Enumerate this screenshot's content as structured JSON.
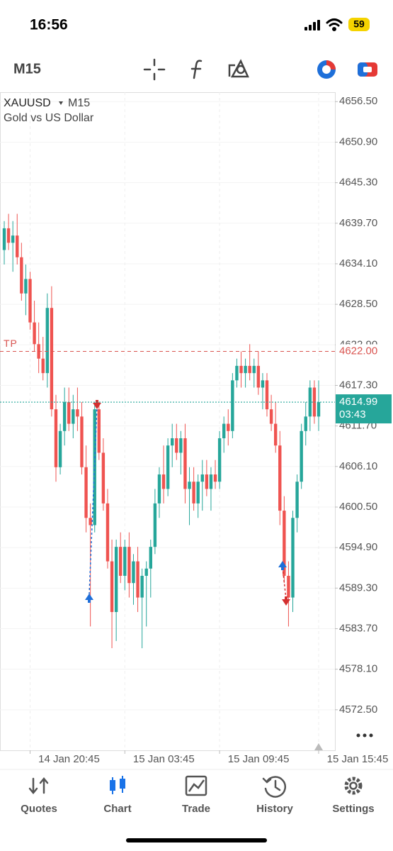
{
  "status": {
    "time": "16:56",
    "battery": "59"
  },
  "toolbar": {
    "timeframe": "M15"
  },
  "nav": [
    {
      "label": "Quotes"
    },
    {
      "label": "Chart"
    },
    {
      "label": "Trade"
    },
    {
      "label": "History"
    },
    {
      "label": "Settings"
    }
  ],
  "chart_data": {
    "type": "candlestick",
    "symbol": "XAUUSD",
    "timeframe": "M15",
    "subtitle": "Gold vs US Dollar",
    "categories": [
      null,
      null,
      null,
      null,
      null,
      null,
      "14 Jan 20:45",
      null,
      null,
      null,
      null,
      null,
      null,
      null,
      null,
      null,
      null,
      null,
      null,
      null,
      null,
      null,
      null,
      null,
      null,
      null,
      null,
      null,
      "15 Jan 03:45",
      null,
      null,
      null,
      null,
      null,
      null,
      null,
      null,
      null,
      null,
      null,
      null,
      null,
      null,
      null,
      null,
      null,
      null,
      null,
      null,
      null,
      "15 Jan 09:45",
      null,
      null,
      null,
      null,
      null,
      null,
      null,
      null,
      null,
      null,
      null,
      null,
      null,
      null,
      null,
      null,
      null,
      null,
      null,
      null,
      null,
      null,
      "15 Jan 15:45"
    ],
    "open": [
      4636,
      4639,
      4637,
      4638,
      4635,
      4630,
      4632,
      4626,
      4623,
      4621,
      4619,
      4628,
      4614,
      4606,
      4611,
      4615,
      4612,
      4614,
      4613,
      4606,
      4599,
      4598,
      4614,
      4608,
      4601,
      4593,
      4586,
      4595,
      4591,
      4595,
      4590,
      4593,
      4588,
      4591,
      4592,
      4595,
      4601,
      4605,
      4603,
      4609,
      4610,
      4608,
      4610,
      4603,
      4604,
      4601,
      4604,
      4605,
      4603,
      4605,
      4604,
      4610,
      4612,
      4611,
      4618,
      4620,
      4619,
      4620,
      4619,
      4620,
      4617,
      4618,
      4614,
      4612,
      4609,
      4600,
      4591,
      4588,
      4599,
      4604,
      4611,
      4613,
      4617,
      4613
    ],
    "high": [
      4640,
      4641,
      4640,
      4641,
      4637,
      4634,
      4633,
      4629,
      4626,
      4624,
      4630,
      4631,
      4616,
      4612,
      4617,
      4617,
      4616,
      4617,
      4615,
      4609,
      4601,
      4615,
      4615,
      4610,
      4603,
      4596,
      4596,
      4597,
      4596,
      4597,
      4594,
      4595,
      4592,
      4593,
      4596,
      4603,
      4606,
      4609,
      4610,
      4612,
      4612,
      4611,
      4612,
      4606,
      4606,
      4605,
      4607,
      4607,
      4606,
      4607,
      4611,
      4613,
      4614,
      4619,
      4621,
      4622,
      4621,
      4623,
      4621,
      4622,
      4619,
      4619,
      4616,
      4615,
      4611,
      4602,
      4593,
      4600,
      4605,
      4612,
      4615,
      4618,
      4618,
      4618
    ],
    "low": [
      4634,
      4636,
      4633,
      4634,
      4629,
      4627,
      4625,
      4622,
      4619,
      4618,
      4617,
      4613,
      4604,
      4605,
      4609,
      4611,
      4610,
      4611,
      4605,
      4597,
      4584,
      4597,
      4607,
      4600,
      4592,
      4581,
      4582,
      4590,
      4589,
      4588,
      4587,
      4586,
      4581,
      4584,
      4588,
      4594,
      4599,
      4601,
      4602,
      4606,
      4607,
      4605,
      4601,
      4598,
      4600,
      4599,
      4600,
      4602,
      4600,
      4603,
      4603,
      4608,
      4609,
      4610,
      4617,
      4617,
      4617,
      4618,
      4617,
      4616,
      4614,
      4613,
      4611,
      4608,
      4598,
      4590,
      4584,
      4586,
      4597,
      4603,
      4609,
      4611,
      4612,
      4611
    ],
    "close": [
      4639,
      4637,
      4638,
      4635,
      4630,
      4632,
      4626,
      4623,
      4621,
      4619,
      4628,
      4614,
      4606,
      4611,
      4615,
      4612,
      4614,
      4613,
      4606,
      4599,
      4598,
      4614,
      4608,
      4601,
      4593,
      4586,
      4595,
      4591,
      4595,
      4590,
      4593,
      4588,
      4591,
      4592,
      4595,
      4601,
      4605,
      4603,
      4609,
      4610,
      4608,
      4610,
      4603,
      4604,
      4601,
      4604,
      4605,
      4603,
      4605,
      4604,
      4610,
      4612,
      4611,
      4618,
      4620,
      4619,
      4620,
      4619,
      4620,
      4617,
      4618,
      4614,
      4612,
      4609,
      4600,
      4591,
      4588,
      4599,
      4604,
      4611,
      4613,
      4617,
      4613,
      4614.99
    ],
    "up_color": "#26a69a",
    "down_color": "#ef5350",
    "ylim": [
      4566.9,
      4657.8
    ],
    "yticks": [
      {
        "value": 4656.5,
        "label": "4656.50"
      },
      {
        "value": 4650.9,
        "label": "4650.90"
      },
      {
        "value": 4645.3,
        "label": "4645.30"
      },
      {
        "value": 4639.7,
        "label": "4639.70"
      },
      {
        "value": 4634.1,
        "label": "4634.10"
      },
      {
        "value": 4628.5,
        "label": "4628.50"
      },
      {
        "value": 4622.9,
        "label": "4622.90"
      },
      {
        "value": 4617.3,
        "label": "4617.30"
      },
      {
        "value": 4611.7,
        "label": "4611.70"
      },
      {
        "value": 4606.1,
        "label": "4606.10"
      },
      {
        "value": 4600.5,
        "label": "4600.50"
      },
      {
        "value": 4594.9,
        "label": "4594.90"
      },
      {
        "value": 4589.3,
        "label": "4589.30"
      },
      {
        "value": 4583.7,
        "label": "4583.70"
      },
      {
        "value": 4578.1,
        "label": "4578.10"
      },
      {
        "value": 4572.5,
        "label": "4572.50"
      }
    ],
    "grid": true,
    "tp": {
      "label": "TP",
      "price": {
        "value": 4622,
        "label": "4622.00"
      },
      "color": "#d9534f"
    },
    "current": {
      "price": 4614.99,
      "countdown": "03:43",
      "color": "#26a69a"
    }
  }
}
